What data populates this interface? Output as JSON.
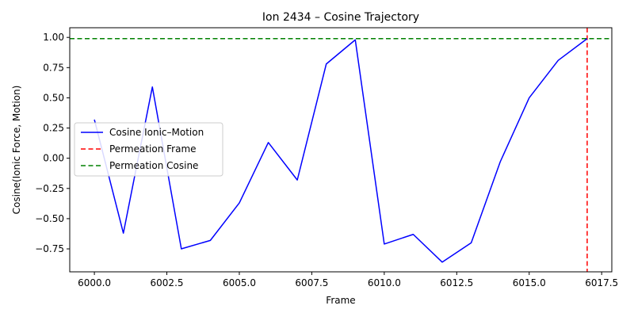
{
  "chart_data": {
    "type": "line",
    "title": "Ion 2434 – Cosine Trajectory",
    "xlabel": "Frame",
    "ylabel": "Cosine(Ionic Force, Motion)",
    "xlim": [
      5999.15,
      6017.85
    ],
    "ylim": [
      -0.94,
      1.08
    ],
    "xticks": [
      6000.0,
      6002.5,
      6005.0,
      6007.5,
      6010.0,
      6012.5,
      6015.0,
      6017.5
    ],
    "xtick_labels": [
      "6000.0",
      "6002.5",
      "6005.0",
      "6007.5",
      "6010.0",
      "6012.5",
      "6015.0",
      "6017.5"
    ],
    "yticks": [
      -0.75,
      -0.5,
      -0.25,
      0.0,
      0.25,
      0.5,
      0.75,
      1.0
    ],
    "ytick_labels": [
      "−0.75",
      "−0.50",
      "−0.25",
      "0.00",
      "0.25",
      "0.50",
      "0.75",
      "1.00"
    ],
    "grid": false,
    "legend_position": "center-left",
    "series": [
      {
        "name": "Cosine Ionic–Motion",
        "color": "#0000ff",
        "style": "solid",
        "x": [
          6000,
          6001,
          6002,
          6003,
          6004,
          6005,
          6006,
          6007,
          6008,
          6009,
          6010,
          6011,
          6012,
          6013,
          6014,
          6015,
          6016,
          6017
        ],
        "y": [
          0.32,
          -0.62,
          0.59,
          -0.75,
          -0.68,
          -0.37,
          0.13,
          -0.18,
          0.78,
          0.98,
          -0.71,
          -0.63,
          -0.86,
          -0.7,
          -0.03,
          0.5,
          0.81,
          0.99
        ]
      }
    ],
    "reference_lines": [
      {
        "name": "Permeation Frame",
        "orientation": "vertical",
        "value": 6017,
        "color": "#ff0000",
        "style": "dashed"
      },
      {
        "name": "Permeation Cosine",
        "orientation": "horizontal",
        "value": 0.99,
        "color": "#008000",
        "style": "dashed"
      }
    ]
  }
}
